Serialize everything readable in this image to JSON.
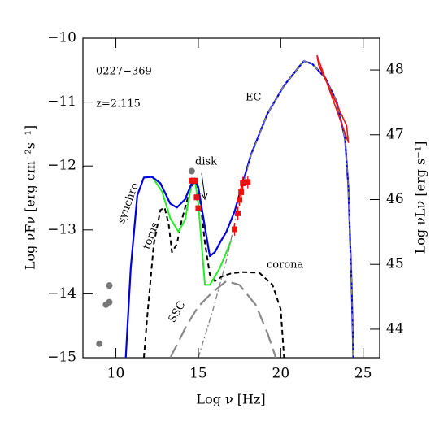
{
  "chart_data": {
    "type": "line",
    "xlabel": "Log ν  [Hz]",
    "ylabel": "Log νFν  [erg cm⁻²s⁻¹]",
    "y2label": "Log νLν  [erg s⁻¹]",
    "xlim": [
      8,
      26
    ],
    "ylim": [
      -15,
      -10
    ],
    "y2lim": [
      43.56,
      48.49
    ],
    "xticks": [
      10,
      15,
      20,
      25
    ],
    "yticks": [
      {
        "value": -15,
        "label": "−15"
      },
      {
        "value": -14,
        "label": "−14"
      },
      {
        "value": -13,
        "label": "−13"
      },
      {
        "value": -12,
        "label": "−12"
      },
      {
        "value": -11,
        "label": "−11"
      },
      {
        "value": -10,
        "label": "−10"
      }
    ],
    "y2ticks": [
      44,
      45,
      46,
      47,
      48
    ],
    "annotations": [
      "0227−369",
      "z=2.115",
      "EC",
      "disk",
      "synchro",
      "torus",
      "corona",
      "SSC"
    ],
    "series": [
      {
        "color": "#888888",
        "dash": "18,7",
        "width": 2.2,
        "x": [
          13.3,
          14.3,
          15.0,
          15.8,
          16.7,
          17.5,
          18.5,
          19.2,
          19.7
        ],
        "values": [
          -15,
          -14.49,
          -14.2,
          -13.99,
          -13.8,
          -13.86,
          -14.18,
          -14.62,
          -15
        ]
      },
      {
        "color": "#000000",
        "dash": "6,4",
        "width": 2,
        "x": [
          11.7,
          11.9,
          12.3,
          12.7,
          12.95,
          13.2,
          13.4,
          13.7,
          14.0,
          14.4,
          14.7,
          14.9,
          15.1,
          15.4,
          15.7,
          16.0,
          16.5,
          17.0,
          17.7,
          18.7,
          19.5,
          20.0,
          20.2
        ],
        "values": [
          -15,
          -14.36,
          -13.22,
          -12.69,
          -12.65,
          -12.9,
          -13.35,
          -13.22,
          -12.84,
          -12.46,
          -12.27,
          -12.25,
          -12.52,
          -13.2,
          -13.7,
          -13.8,
          -13.72,
          -13.68,
          -13.66,
          -13.67,
          -13.86,
          -14.24,
          -15
        ]
      },
      {
        "color": "#22ee22",
        "dash": "none",
        "width": 2,
        "x": [
          12.2,
          12.8,
          13.3,
          13.8,
          14.2,
          14.6,
          14.8,
          15.0,
          15.4,
          15.7,
          16.3,
          17.0
        ],
        "values": [
          -12.17,
          -12.4,
          -12.82,
          -13.03,
          -12.84,
          -12.27,
          -12.23,
          -12.59,
          -13.86,
          -13.86,
          -13.6,
          -13.16
        ]
      },
      {
        "color": "#0000dd",
        "dash": "none",
        "width": 2.2,
        "x": [
          10.6,
          10.9,
          11.3,
          11.7,
          12.2,
          12.7,
          13.3,
          13.7,
          14.2,
          14.6,
          14.8,
          15.0,
          15.4,
          15.7,
          16.0,
          16.4,
          16.7,
          17.2,
          17.7,
          18.2,
          19.2,
          20.2,
          21.2,
          21.4,
          21.9,
          22.7,
          23.4,
          23.9,
          24.1,
          24.3,
          24.4
        ],
        "values": [
          -15,
          -13.6,
          -12.46,
          -12.18,
          -12.17,
          -12.27,
          -12.59,
          -12.65,
          -12.52,
          -12.27,
          -12.23,
          -12.33,
          -12.96,
          -13.41,
          -13.35,
          -13.16,
          -13.03,
          -12.71,
          -12.26,
          -11.82,
          -11.18,
          -10.74,
          -10.42,
          -10.36,
          -10.4,
          -10.62,
          -11.0,
          -11.57,
          -12.33,
          -13.86,
          -15
        ]
      },
      {
        "color": "#888888",
        "dash": "7,3,2,3",
        "width": 1.4,
        "x": [
          15.0,
          15.9,
          16.7,
          17.2,
          17.7,
          18.2,
          19.2,
          20.2,
          21.2,
          21.4,
          21.9,
          22.7,
          23.4,
          23.9,
          24.1,
          24.3,
          24.4
        ],
        "values": [
          -15,
          -14.24,
          -13.48,
          -12.9,
          -12.3,
          -11.84,
          -11.18,
          -10.74,
          -10.42,
          -10.36,
          -10.4,
          -10.62,
          -11.0,
          -11.57,
          -12.33,
          -13.86,
          -15
        ]
      },
      {
        "color": "#ee1111",
        "dash": "none",
        "width": 1.6,
        "x": [
          22.2,
          24.1,
          24.0,
          22.3,
          22.2
        ],
        "values": [
          -10.27,
          -11.63,
          -11.37,
          -10.42,
          -10.27
        ]
      }
    ],
    "points": [
      {
        "color": "#777777",
        "marker": "circle",
        "x": [
          14.6,
          9.6,
          9.4,
          9.6,
          9.0
        ],
        "values": [
          -12.08,
          -13.87,
          -14.17,
          -14.13,
          -14.78
        ]
      },
      {
        "color": "#ee1111",
        "marker": "square",
        "x": [
          14.6,
          14.8,
          14.9,
          15.0,
          17.2,
          17.4,
          17.5,
          17.6,
          17.7,
          18.0
        ],
        "values": [
          -12.23,
          -12.23,
          -12.49,
          -12.66,
          -12.99,
          -12.74,
          -12.53,
          -12.41,
          -12.27,
          -12.25
        ],
        "errors": [
          0.05,
          0.05,
          0.05,
          0.05,
          0.1,
          0.1,
          0.1,
          0.1,
          0.1,
          0.1
        ]
      }
    ]
  }
}
